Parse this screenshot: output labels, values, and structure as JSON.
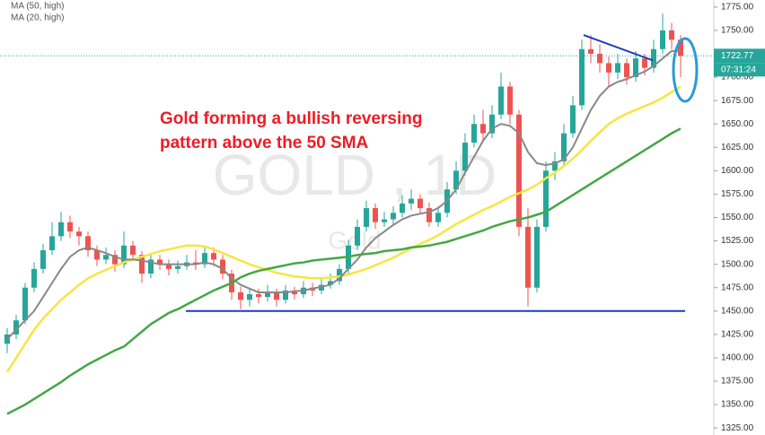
{
  "chart_data": {
    "type": "candlestick",
    "watermark": "GOLD , 1D",
    "watermark_sub": "Gold",
    "annotation": [
      "Gold forming a bullish reversing",
      "pattern above the 50 SMA"
    ],
    "up_color": "#26a69a",
    "down_color": "#ef5350",
    "open": [
      1415,
      1425,
      1440,
      1475,
      1495,
      1515,
      1530,
      1545,
      1535,
      1530,
      1515,
      1505,
      1510,
      1500,
      1520,
      1510,
      1490,
      1505,
      1500,
      1495,
      1498,
      1502,
      1500,
      1512,
      1505,
      1490,
      1470,
      1462,
      1468,
      1465,
      1470,
      1462,
      1472,
      1468,
      1475,
      1472,
      1478,
      1482,
      1495,
      1520,
      1540,
      1560,
      1545,
      1548,
      1555,
      1565,
      1570,
      1560,
      1545,
      1555,
      1580,
      1600,
      1630,
      1650,
      1640,
      1660,
      1690,
      1660,
      1540,
      1475,
      1540,
      1600,
      1610,
      1640,
      1670,
      1730,
      1725,
      1715,
      1705,
      1715,
      1700,
      1720,
      1710,
      1730,
      1750,
      1740
    ],
    "high": [
      1432,
      1446,
      1480,
      1502,
      1522,
      1545,
      1556,
      1552,
      1540,
      1535,
      1520,
      1518,
      1515,
      1535,
      1525,
      1514,
      1512,
      1510,
      1505,
      1504,
      1510,
      1515,
      1520,
      1518,
      1510,
      1494,
      1476,
      1475,
      1474,
      1478,
      1474,
      1478,
      1476,
      1482,
      1480,
      1484,
      1490,
      1500,
      1526,
      1548,
      1568,
      1565,
      1556,
      1562,
      1574,
      1580,
      1575,
      1566,
      1562,
      1588,
      1610,
      1640,
      1660,
      1665,
      1670,
      1705,
      1695,
      1665,
      1560,
      1548,
      1610,
      1620,
      1650,
      1680,
      1740,
      1745,
      1735,
      1722,
      1725,
      1720,
      1728,
      1725,
      1740,
      1768,
      1758,
      1745
    ],
    "low": [
      1405,
      1420,
      1436,
      1470,
      1490,
      1510,
      1525,
      1528,
      1520,
      1508,
      1498,
      1500,
      1492,
      1496,
      1505,
      1480,
      1485,
      1494,
      1488,
      1490,
      1494,
      1494,
      1496,
      1498,
      1484,
      1462,
      1452,
      1455,
      1458,
      1460,
      1455,
      1458,
      1462,
      1464,
      1466,
      1468,
      1474,
      1478,
      1490,
      1515,
      1535,
      1538,
      1540,
      1542,
      1550,
      1558,
      1554,
      1540,
      1540,
      1550,
      1575,
      1595,
      1625,
      1632,
      1635,
      1655,
      1650,
      1530,
      1455,
      1470,
      1535,
      1590,
      1605,
      1635,
      1665,
      1715,
      1705,
      1690,
      1698,
      1692,
      1695,
      1702,
      1705,
      1725,
      1730,
      1700
    ],
    "close": [
      1425,
      1440,
      1475,
      1495,
      1515,
      1530,
      1545,
      1535,
      1530,
      1515,
      1505,
      1510,
      1500,
      1520,
      1510,
      1490,
      1505,
      1500,
      1495,
      1498,
      1502,
      1500,
      1512,
      1505,
      1490,
      1470,
      1462,
      1468,
      1465,
      1470,
      1462,
      1472,
      1468,
      1475,
      1472,
      1478,
      1482,
      1495,
      1520,
      1540,
      1560,
      1545,
      1548,
      1555,
      1565,
      1570,
      1560,
      1545,
      1555,
      1580,
      1600,
      1630,
      1650,
      1640,
      1660,
      1690,
      1660,
      1540,
      1475,
      1540,
      1600,
      1610,
      1640,
      1670,
      1730,
      1725,
      1715,
      1705,
      1715,
      1700,
      1720,
      1710,
      1730,
      1750,
      1740,
      1722.77
    ],
    "series": [
      {
        "name": "MA (50, high)",
        "color": "#f5e642",
        "values": [
          1385,
          1400,
          1415,
          1430,
          1442,
          1452,
          1462,
          1470,
          1478,
          1485,
          1490,
          1494,
          1498,
          1502,
          1505,
          1508,
          1511,
          1514,
          1516,
          1518,
          1520,
          1520,
          1519,
          1516,
          1512,
          1508,
          1504,
          1500,
          1497,
          1494,
          1491,
          1489,
          1487,
          1486,
          1485,
          1485,
          1486,
          1487,
          1489,
          1492,
          1495,
          1499,
          1503,
          1507,
          1512,
          1517,
          1522,
          1526,
          1531,
          1537,
          1543,
          1548,
          1553,
          1558,
          1562,
          1567,
          1572,
          1576,
          1580,
          1585,
          1592,
          1598,
          1605,
          1613,
          1622,
          1632,
          1641,
          1650,
          1656,
          1661,
          1665,
          1669,
          1673,
          1678,
          1684,
          1690
        ]
      },
      {
        "name": "MA (20, high)",
        "color": "#888888",
        "values": [
          1420,
          1430,
          1440,
          1450,
          1465,
          1480,
          1495,
          1508,
          1515,
          1518,
          1515,
          1512,
          1508,
          1505,
          1505,
          1504,
          1502,
          1500,
          1500,
          1500,
          1500,
          1500,
          1502,
          1500,
          1495,
          1485,
          1478,
          1474,
          1470,
          1470,
          1470,
          1470,
          1471,
          1472,
          1474,
          1476,
          1478,
          1485,
          1495,
          1505,
          1518,
          1528,
          1535,
          1542,
          1548,
          1552,
          1554,
          1556,
          1560,
          1568,
          1580,
          1598,
          1615,
          1632,
          1645,
          1650,
          1648,
          1640,
          1620,
          1608,
          1606,
          1608,
          1612,
          1625,
          1645,
          1665,
          1680,
          1690,
          1695,
          1698,
          1702,
          1706,
          1712,
          1720,
          1728,
          1728
        ]
      },
      {
        "color": "#43a845",
        "values": [
          1340,
          1345,
          1350,
          1356,
          1362,
          1368,
          1374,
          1381,
          1387,
          1393,
          1398,
          1403,
          1408,
          1412,
          1420,
          1428,
          1436,
          1442,
          1448,
          1452,
          1457,
          1462,
          1467,
          1472,
          1476,
          1480,
          1486,
          1490,
          1493,
          1495,
          1497,
          1499,
          1501,
          1502,
          1504,
          1505,
          1506,
          1507,
          1508,
          1510,
          1511,
          1512,
          1514,
          1515,
          1516,
          1518,
          1519,
          1520,
          1522,
          1524,
          1527,
          1530,
          1533,
          1536,
          1540,
          1543,
          1546,
          1548,
          1550,
          1553,
          1556,
          1562,
          1568,
          1574,
          1580,
          1586,
          1592,
          1598,
          1604,
          1610,
          1616,
          1622,
          1628,
          1634,
          1640,
          1645
        ]
      }
    ],
    "support_line": 1450,
    "trendline": [
      1745,
      1718
    ],
    "last_price": 1722.77,
    "countdown": "07:31:24",
    "ylim": [
      1317.5,
      1782.5
    ],
    "yticks": [
      {
        "value": 1325,
        "label": "1325.00"
      },
      {
        "value": 1350,
        "label": "1350.00"
      },
      {
        "value": 1375,
        "label": "1375.00"
      },
      {
        "value": 1400,
        "label": "1400.00"
      },
      {
        "value": 1425,
        "label": "1425.00"
      },
      {
        "value": 1450,
        "label": "1450.00"
      },
      {
        "value": 1475,
        "label": "1475.00"
      },
      {
        "value": 1500,
        "label": "1500.00"
      },
      {
        "value": 1525,
        "label": "1525.00"
      },
      {
        "value": 1550,
        "label": "1550.00"
      },
      {
        "value": 1575,
        "label": "1575.00"
      },
      {
        "value": 1600,
        "label": "1600.00"
      },
      {
        "value": 1625,
        "label": "1625.00"
      },
      {
        "value": 1650,
        "label": "1650.00"
      },
      {
        "value": 1675,
        "label": "1675.00"
      },
      {
        "value": 1700,
        "label": "1700.00"
      },
      {
        "value": 1725,
        "label": "1725.00"
      },
      {
        "value": 1750,
        "label": "1750.00"
      },
      {
        "value": 1775,
        "label": "1775.00"
      }
    ]
  }
}
